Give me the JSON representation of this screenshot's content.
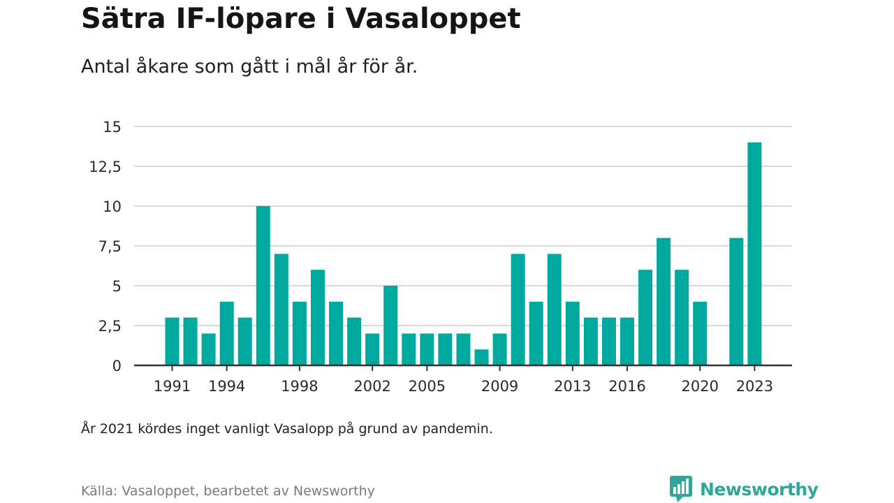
{
  "title": "Sätra IF-löpare i Vasaloppet",
  "subtitle": "Antal åkare som gått i mål år för år.",
  "note": "År 2021 kördes inget vanligt Vasalopp på grund av pandemin.",
  "source": "Källa: Vasaloppet, bearbetet av Newsworthy",
  "brand": {
    "name": "Newsworthy",
    "icon": "newsworthy-logo-icon"
  },
  "colors": {
    "bar": "#00a99d",
    "grid": "#d9d9d9",
    "axis": "#333333",
    "brand": "#2ea69a"
  },
  "chart_data": {
    "type": "bar",
    "title": "Sätra IF-löpare i Vasaloppet",
    "subtitle": "Antal åkare som gått i mål år för år.",
    "xlabel": "",
    "ylabel": "",
    "ylim": [
      0,
      15
    ],
    "yticks": [
      0,
      2.5,
      5,
      7.5,
      10,
      12.5,
      15
    ],
    "ytick_labels": [
      "0",
      "2,5",
      "5",
      "7,5",
      "10",
      "12,5",
      "15"
    ],
    "xtick_labels": [
      "1991",
      "1994",
      "1998",
      "2002",
      "2005",
      "2009",
      "2013",
      "2016",
      "2020",
      "2023"
    ],
    "grid": true,
    "categories": [
      1991,
      1992,
      1993,
      1994,
      1995,
      1996,
      1997,
      1998,
      1999,
      2000,
      2001,
      2002,
      2003,
      2004,
      2005,
      2006,
      2007,
      2008,
      2009,
      2010,
      2011,
      2012,
      2013,
      2014,
      2015,
      2016,
      2017,
      2018,
      2019,
      2020,
      2021,
      2022,
      2023
    ],
    "values": [
      3,
      3,
      2,
      4,
      3,
      10,
      7,
      4,
      6,
      4,
      3,
      2,
      5,
      2,
      2,
      2,
      2,
      1,
      2,
      7,
      4,
      7,
      4,
      3,
      3,
      3,
      6,
      8,
      6,
      4,
      null,
      8,
      14
    ]
  }
}
